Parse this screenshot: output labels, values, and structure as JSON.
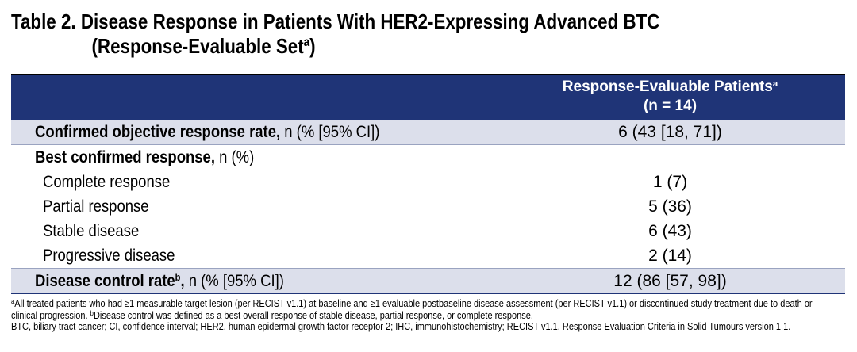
{
  "title": {
    "line1": "Table 2. Disease Response in Patients With HER2-Expressing Advanced BTC",
    "line2": "(Response-Evaluable Set",
    "line2_sup": "a",
    "line2_end": ")"
  },
  "header": {
    "column_label": "Response-Evaluable Patients",
    "column_sup": "a",
    "column_n": "(n = 14)"
  },
  "rows": [
    {
      "label_bold": "Confirmed objective response rate,",
      "label_sup": "",
      "label_rest": " n (% [95% CI])",
      "value": "6 (43 [18, 71])"
    },
    {
      "label_bold": "Best confirmed response,",
      "label_sup": "",
      "label_rest": " n (%)",
      "value": ""
    },
    {
      "label_bold": "",
      "label_sup": "",
      "label_rest": "Complete response",
      "value": "1 (7)"
    },
    {
      "label_bold": "",
      "label_sup": "",
      "label_rest": "Partial response",
      "value": "5 (36)"
    },
    {
      "label_bold": "",
      "label_sup": "",
      "label_rest": "Stable disease",
      "value": "6 (43)"
    },
    {
      "label_bold": "",
      "label_sup": "",
      "label_rest": "Progressive disease",
      "value": "2 (14)"
    },
    {
      "label_bold": "Disease control rate",
      "label_sup": "b",
      "label_bold_end": ",",
      "label_rest": " n (% [95% CI])",
      "value": "12 (86 [57, 98])"
    }
  ],
  "footnotes": {
    "a_mark": "a",
    "a_text": "All treated patients who had ≥1 measurable target lesion (per RECIST v1.1) at baseline and ≥1 evaluable postbaseline disease assessment (per RECIST v1.1) or discontinued study treatment due to death or clinical progression. ",
    "b_mark": "b",
    "b_text": "Disease control was defined as a best overall response of stable disease, partial response, or complete response.",
    "abbreviations": "BTC, biliary tract cancer; CI, confidence interval; HER2, human epidermal growth factor receptor 2; IHC, immunohistochemistry; RECIST v1.1, Response Evaluation Criteria in Solid Tumours version 1.1."
  }
}
